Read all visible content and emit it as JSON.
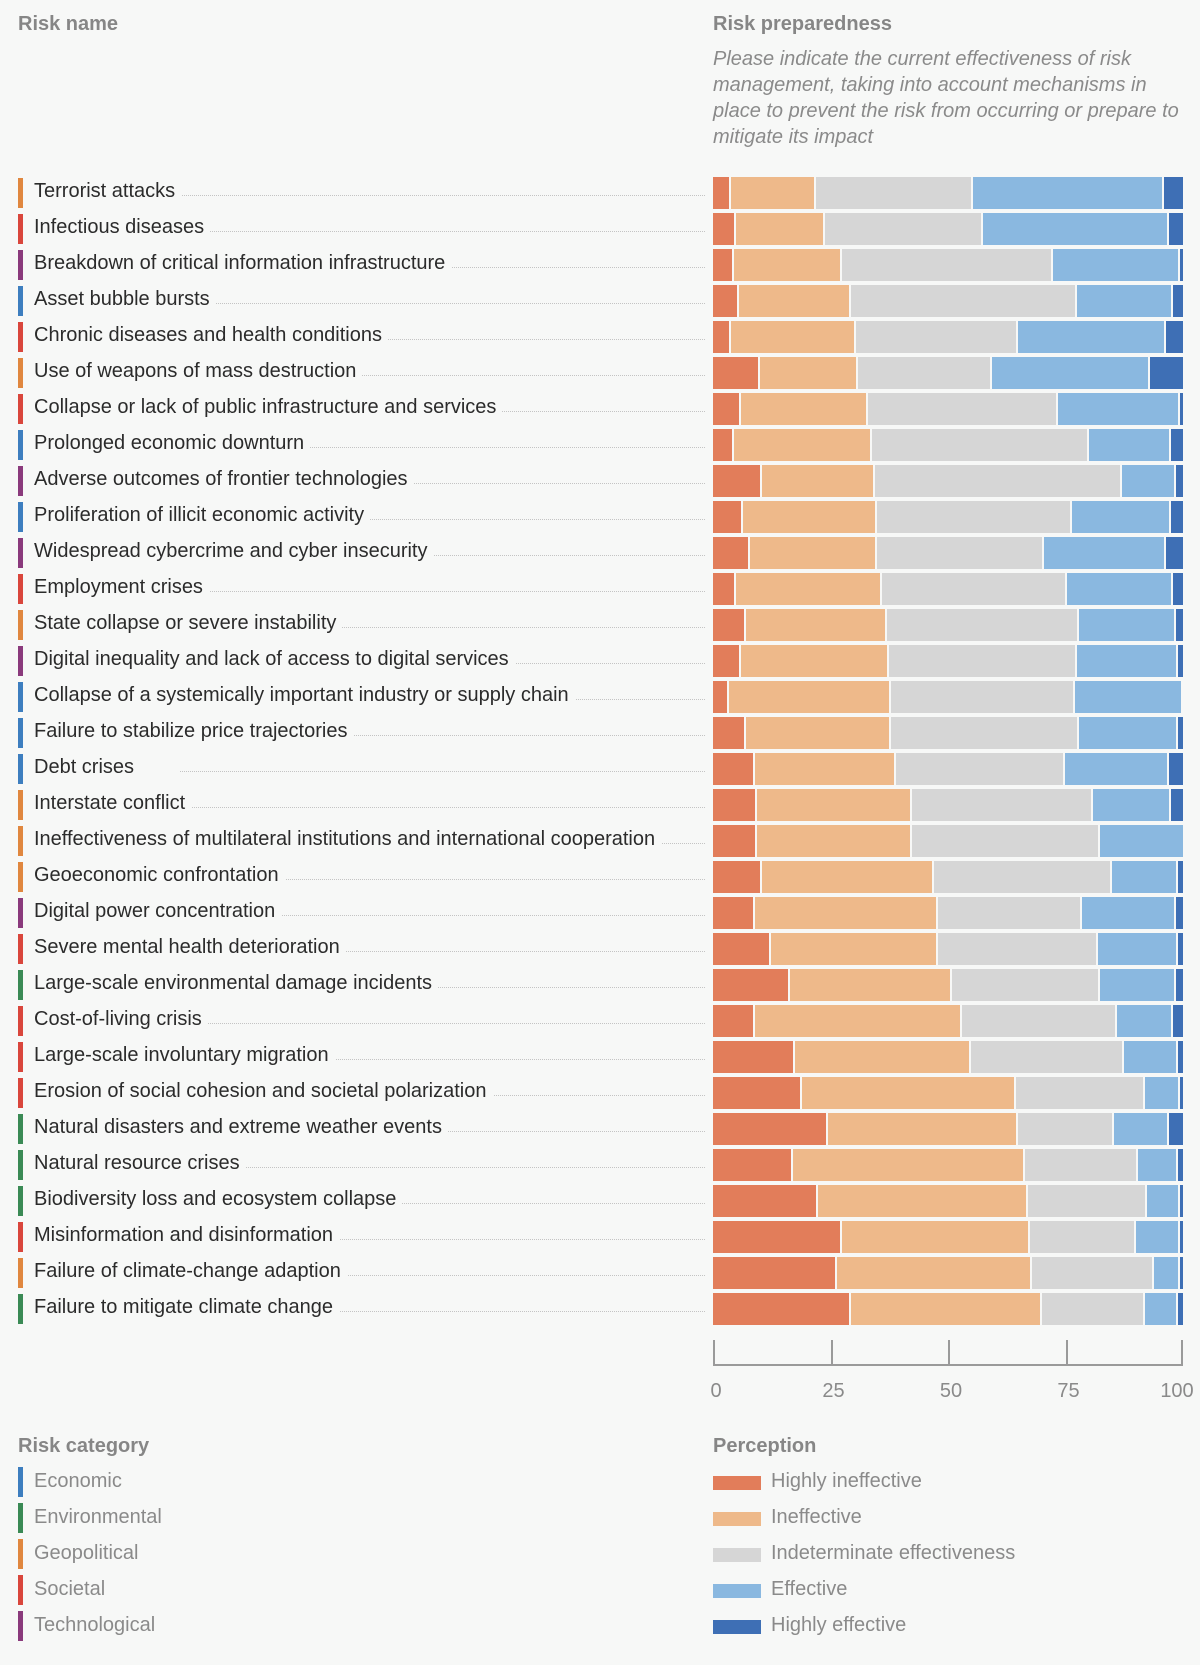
{
  "headers": {
    "risk_name": "Risk name",
    "risk_preparedness": "Risk preparedness",
    "subtitle": "Please indicate the current effectiveness of risk management, taking into account mechanisms in place to prevent the risk from occurring or prepare to mitigate its impact",
    "risk_category": "Risk category",
    "perception": "Perception"
  },
  "colors": {
    "Economic": "#3d7ebf",
    "Environmental": "#3a8a55",
    "Geopolitical": "#e0873f",
    "Societal": "#d9463c",
    "Technological": "#8a3a7c",
    "Highly ineffective": "#e27d5a",
    "Ineffective": "#eeb98a",
    "Indeterminate effectiveness": "#d6d6d6",
    "Effective": "#8ab8e0",
    "Highly effective": "#3e6fb5"
  },
  "risk_categories": [
    "Economic",
    "Environmental",
    "Geopolitical",
    "Societal",
    "Technological"
  ],
  "chart_data": {
    "type": "bar",
    "orientation": "horizontal",
    "stacked": true,
    "xlim": [
      0,
      100
    ],
    "xticks": [
      0,
      25,
      50,
      75,
      100
    ],
    "series_names": [
      "Highly ineffective",
      "Ineffective",
      "Indeterminate effectiveness",
      "Effective",
      "Highly effective"
    ],
    "rows": [
      {
        "name": "Terrorist attacks",
        "category": "Geopolitical",
        "values": [
          3.5,
          18,
          33.5,
          40.5,
          4.5
        ]
      },
      {
        "name": "Infectious diseases",
        "category": "Societal",
        "values": [
          4.5,
          19,
          33.5,
          39.5,
          3.5
        ]
      },
      {
        "name": "Breakdown of critical information infrastructure",
        "category": "Technological",
        "values": [
          4,
          23,
          45,
          27,
          1
        ]
      },
      {
        "name": "Asset bubble bursts",
        "category": "Economic",
        "values": [
          5,
          24,
          48,
          20.5,
          2.5
        ]
      },
      {
        "name": "Chronic diseases and health conditions",
        "category": "Societal",
        "values": [
          3.5,
          26.5,
          34.5,
          31.5,
          4
        ]
      },
      {
        "name": "Use of weapons of mass destruction",
        "category": "Geopolitical",
        "values": [
          9.5,
          21,
          28.5,
          33.5,
          7.5
        ]
      },
      {
        "name": "Collapse or lack of public infrastructure and services",
        "category": "Societal",
        "values": [
          5.5,
          27,
          40.5,
          26,
          1
        ]
      },
      {
        "name": "Prolonged economic downturn",
        "category": "Economic",
        "values": [
          4,
          29.5,
          46,
          17.5,
          3
        ]
      },
      {
        "name": "Adverse outcomes of frontier technologies",
        "category": "Technological",
        "values": [
          10,
          24,
          52.5,
          11.5,
          2
        ]
      },
      {
        "name": "Proliferation of illicit economic activity",
        "category": "Economic",
        "values": [
          6,
          28.5,
          41.5,
          21,
          3
        ]
      },
      {
        "name": "Widespread cybercrime and cyber insecurity",
        "category": "Technological",
        "values": [
          7.5,
          27,
          35.5,
          26,
          4
        ]
      },
      {
        "name": "Employment crises",
        "category": "Societal",
        "values": [
          4.5,
          31,
          39.5,
          22.5,
          2.5
        ]
      },
      {
        "name": "State collapse or severe instability",
        "category": "Geopolitical",
        "values": [
          6.5,
          30,
          41,
          20.5,
          2
        ]
      },
      {
        "name": "Digital inequality and lack of access to digital services",
        "category": "Technological",
        "values": [
          5.5,
          31.5,
          40,
          21.5,
          1.5
        ]
      },
      {
        "name": "Collapse of a systemically important industry or supply chain",
        "category": "Economic",
        "values": [
          3,
          34.5,
          39,
          23,
          0.5
        ]
      },
      {
        "name": "Failure to stabilize price trajectories",
        "category": "Economic",
        "values": [
          6.5,
          31,
          40,
          21,
          1.5
        ]
      },
      {
        "name": "Debt crises",
        "category": "Economic",
        "values": [
          8.5,
          30,
          36,
          22,
          3.5
        ]
      },
      {
        "name": "Interstate conflict",
        "category": "Geopolitical",
        "values": [
          9,
          33,
          38.5,
          16.5,
          3
        ]
      },
      {
        "name": "Ineffectiveness of multilateral institutions and international cooperation",
        "category": "Geopolitical",
        "values": [
          9,
          33,
          40,
          18,
          0
        ]
      },
      {
        "name": "Geoeconomic confrontation",
        "category": "Geopolitical",
        "values": [
          10,
          36.5,
          38,
          14,
          1.5
        ]
      },
      {
        "name": "Digital power concentration",
        "category": "Technological",
        "values": [
          8.5,
          39,
          30.5,
          20,
          2
        ]
      },
      {
        "name": "Severe mental health deterioration",
        "category": "Societal",
        "values": [
          12,
          35.5,
          34,
          17,
          1.5
        ]
      },
      {
        "name": "Large-scale environmental damage incidents",
        "category": "Environmental",
        "values": [
          16,
          34.5,
          31.5,
          16,
          2
        ]
      },
      {
        "name": "Cost-of-living crisis",
        "category": "Societal",
        "values": [
          8.5,
          44,
          33,
          12,
          2.5
        ]
      },
      {
        "name": "Large-scale involuntary migration",
        "category": "Societal",
        "values": [
          17,
          37.5,
          32.5,
          11.5,
          1.5
        ]
      },
      {
        "name": "Erosion of social cohesion and societal polarization",
        "category": "Societal",
        "values": [
          18.5,
          45.5,
          27.5,
          7.5,
          1
        ]
      },
      {
        "name": "Natural disasters and extreme weather events",
        "category": "Environmental",
        "values": [
          24,
          40.5,
          20.5,
          11.5,
          3.5
        ]
      },
      {
        "name": "Natural resource crises",
        "category": "Environmental",
        "values": [
          16.5,
          49.5,
          24,
          8.5,
          1.5
        ]
      },
      {
        "name": "Biodiversity loss and ecosystem collapse",
        "category": "Environmental",
        "values": [
          22,
          44.5,
          25.5,
          7,
          1
        ]
      },
      {
        "name": "Misinformation and disinformation",
        "category": "Societal",
        "values": [
          27,
          40,
          22.5,
          9.5,
          1
        ]
      },
      {
        "name": "Failure of climate-change adaption",
        "category": "Geopolitical",
        "values": [
          26,
          41.5,
          26,
          5.5,
          1
        ]
      },
      {
        "name": "Failure to mitigate climate change",
        "category": "Environmental",
        "values": [
          29,
          40.5,
          22,
          7,
          1.5
        ]
      }
    ]
  }
}
